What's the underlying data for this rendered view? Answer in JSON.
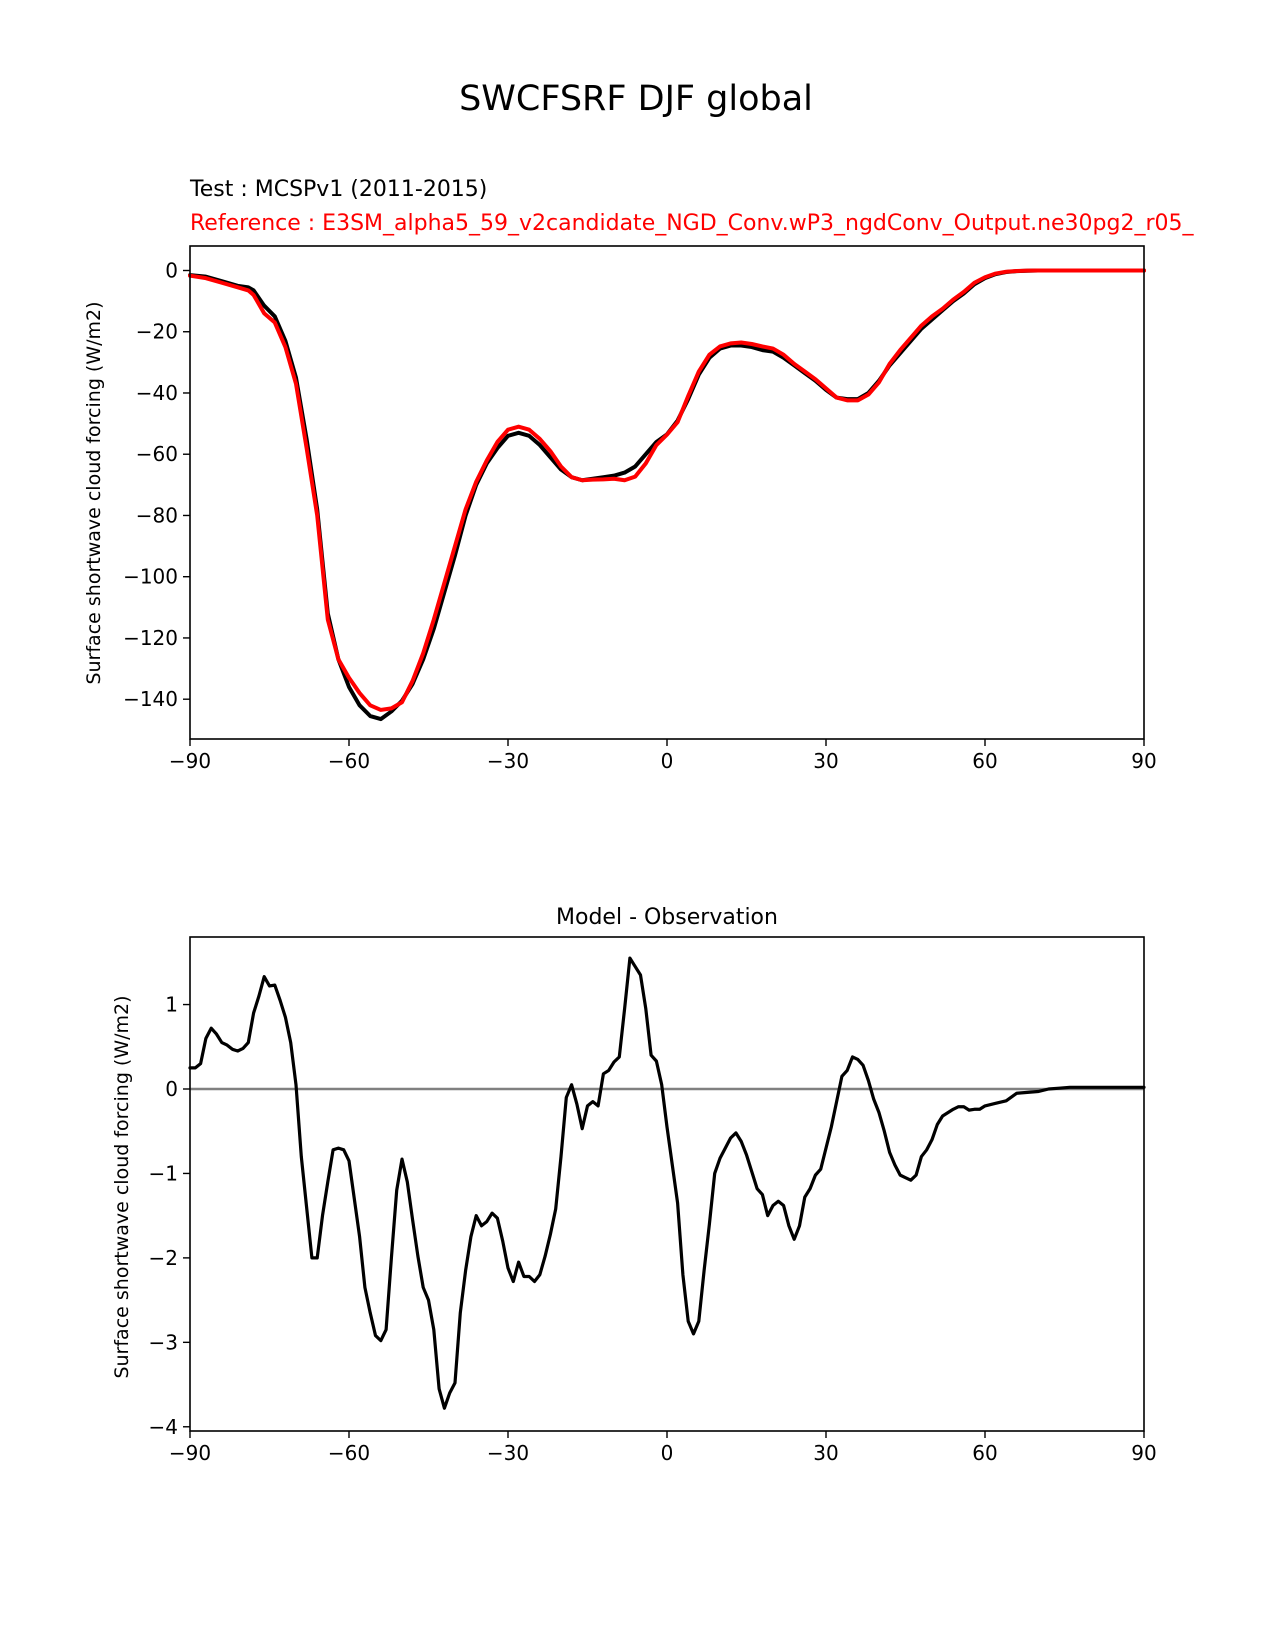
{
  "figure": {
    "title": "SWCFSRF DJF global"
  },
  "colors": {
    "test": "#000000",
    "reference": "#ff0000",
    "zero_line": "#808080",
    "axes": "#000000",
    "background": "#ffffff"
  },
  "chart_data": [
    {
      "type": "line",
      "test_label": "Test : MCSPv1 (2011-2015)",
      "reference_label": "Reference : E3SM_alpha5_59_v2candidate_NGD_Conv.wP3_ngdConv_Output.ne30pg2_r05_",
      "xlabel": "",
      "ylabel": "Surface shortwave cloud forcing (W/m2)",
      "xlim": [
        -90,
        90
      ],
      "ylim": [
        -153,
        8
      ],
      "xticks": [
        -90,
        -60,
        -30,
        0,
        30,
        60,
        90
      ],
      "xtick_labels": [
        "−90",
        "−60",
        "−30",
        "0",
        "30",
        "60",
        "90"
      ],
      "yticks": [
        0,
        -20,
        -40,
        -60,
        -80,
        -100,
        -120,
        -140
      ],
      "ytick_labels": [
        "0",
        "−20",
        "−40",
        "−60",
        "−80",
        "−100",
        "−120",
        "−140"
      ],
      "series": [
        {
          "name": "Test : MCSPv1 (2011-2015)",
          "color": "#000000",
          "x": [
            -90,
            -87,
            -84,
            -81,
            -79,
            -78,
            -76,
            -74,
            -72,
            -70,
            -68,
            -66,
            -64,
            -62,
            -60,
            -58,
            -56,
            -54,
            -52,
            -50,
            -48,
            -46,
            -44,
            -42,
            -40,
            -38,
            -36,
            -34,
            -32,
            -30,
            -28,
            -26,
            -24,
            -22,
            -20,
            -18,
            -16,
            -14,
            -12,
            -10,
            -8,
            -6,
            -4,
            -2,
            0,
            2,
            4,
            6,
            8,
            10,
            12,
            14,
            16,
            18,
            20,
            22,
            24,
            26,
            28,
            30,
            32,
            34,
            36,
            38,
            40,
            42,
            44,
            46,
            48,
            50,
            52,
            54,
            56,
            58,
            60,
            62,
            64,
            66,
            68,
            70,
            75,
            80,
            90
          ],
          "values": [
            -1.5,
            -2,
            -3.5,
            -5,
            -5.5,
            -6.5,
            -11.5,
            -15,
            -23,
            -35,
            -55,
            -78,
            -112,
            -127,
            -136,
            -142,
            -145.5,
            -146.5,
            -144,
            -140.5,
            -135,
            -127,
            -117,
            -105,
            -93,
            -80,
            -70,
            -63,
            -58,
            -54,
            -53,
            -54,
            -57,
            -61,
            -65,
            -67.5,
            -68.5,
            -68,
            -67.5,
            -67,
            -66,
            -64,
            -60,
            -56,
            -53.5,
            -49,
            -42,
            -34,
            -28.5,
            -25.5,
            -24.5,
            -24.5,
            -25,
            -26,
            -26.5,
            -28.5,
            -31,
            -33.5,
            -36,
            -39,
            -41.5,
            -42,
            -42,
            -40,
            -36,
            -31,
            -27,
            -23,
            -19,
            -16,
            -13,
            -10,
            -7.5,
            -4.5,
            -2.5,
            -1.2,
            -0.5,
            -0.2,
            -0.1,
            0,
            0,
            0,
            0
          ]
        },
        {
          "name": "Reference : E3SM_alpha5_59_v2candidate_NGD_Conv.wP3_ngdConv_Output.ne30pg2_r05_",
          "color": "#ff0000",
          "x": [
            -90,
            -87,
            -84,
            -81,
            -79,
            -78,
            -76,
            -74,
            -72,
            -70,
            -68,
            -66,
            -64,
            -62,
            -60,
            -58,
            -56,
            -54,
            -52,
            -50,
            -48,
            -46,
            -44,
            -42,
            -40,
            -38,
            -36,
            -34,
            -32,
            -30,
            -28,
            -26,
            -24,
            -22,
            -20,
            -18,
            -16,
            -14,
            -12,
            -10,
            -8,
            -6,
            -4,
            -2,
            0,
            2,
            4,
            6,
            8,
            10,
            12,
            14,
            16,
            18,
            20,
            22,
            24,
            26,
            28,
            30,
            32,
            34,
            36,
            38,
            40,
            42,
            44,
            46,
            48,
            50,
            52,
            54,
            56,
            58,
            60,
            62,
            64,
            66,
            68,
            70,
            75,
            80,
            90
          ],
          "values": [
            -1.7,
            -2.5,
            -4,
            -5.5,
            -6.5,
            -8,
            -14,
            -17,
            -25,
            -37,
            -58,
            -80,
            -114,
            -127,
            -133,
            -138,
            -142,
            -143.5,
            -143,
            -141,
            -134,
            -125,
            -114,
            -102,
            -90,
            -78,
            -69,
            -62,
            -56,
            -52,
            -51,
            -52,
            -55,
            -59,
            -64,
            -67.5,
            -68.5,
            -68.3,
            -68.2,
            -68,
            -68.5,
            -67.3,
            -63,
            -57,
            -53.6,
            -49.5,
            -41,
            -33,
            -27.5,
            -24.8,
            -23.8,
            -23.5,
            -24,
            -24.8,
            -25.5,
            -27.5,
            -30.5,
            -33,
            -35.5,
            -38.5,
            -41.5,
            -42.4,
            -42.4,
            -40.5,
            -36.5,
            -30.5,
            -26,
            -22,
            -18,
            -15,
            -12.5,
            -9.5,
            -7,
            -4,
            -2.2,
            -1,
            -0.4,
            -0.15,
            -0.05,
            0,
            0,
            0,
            0
          ]
        }
      ]
    },
    {
      "type": "line",
      "title": "Model - Observation",
      "xlabel": "",
      "ylabel": "Surface shortwave cloud forcing (W/m2)",
      "xlim": [
        -90,
        90
      ],
      "ylim": [
        -4.05,
        1.8
      ],
      "xticks": [
        -90,
        -60,
        -30,
        0,
        30,
        60,
        90
      ],
      "xtick_labels": [
        "−90",
        "−60",
        "−30",
        "0",
        "30",
        "60",
        "90"
      ],
      "yticks": [
        1,
        0,
        -1,
        -2,
        -3,
        -4
      ],
      "ytick_labels": [
        "1",
        "0",
        "−1",
        "−2",
        "−3",
        "−4"
      ],
      "zero_line": true,
      "series": [
        {
          "name": "Model - Observation",
          "color": "#000000",
          "x": [
            -90,
            -89,
            -88,
            -87,
            -86,
            -85,
            -84,
            -83,
            -82,
            -81,
            -80,
            -79,
            -78,
            -77,
            -76,
            -75,
            -74,
            -73,
            -72,
            -71,
            -70,
            -69,
            -68,
            -67,
            -66,
            -65,
            -64,
            -63,
            -62,
            -61,
            -60,
            -59,
            -58,
            -57,
            -56,
            -55,
            -54,
            -53,
            -52,
            -51,
            -50,
            -49,
            -48,
            -47,
            -46,
            -45,
            -44,
            -43,
            -42,
            -41,
            -40,
            -39,
            -38,
            -37,
            -36,
            -35,
            -34,
            -33,
            -32,
            -31,
            -30,
            -29,
            -28,
            -27,
            -26,
            -25,
            -24,
            -23,
            -22,
            -21,
            -20,
            -19,
            -18,
            -17,
            -16,
            -15,
            -14,
            -13,
            -12,
            -11,
            -10,
            -9,
            -8,
            -7,
            -6,
            -5,
            -4,
            -3,
            -2,
            -1,
            0,
            1,
            2,
            3,
            4,
            5,
            6,
            7,
            8,
            9,
            10,
            11,
            12,
            13,
            14,
            15,
            16,
            17,
            18,
            19,
            20,
            21,
            22,
            23,
            24,
            25,
            26,
            27,
            28,
            29,
            30,
            31,
            32,
            33,
            34,
            35,
            36,
            37,
            38,
            39,
            40,
            41,
            42,
            43,
            44,
            45,
            46,
            47,
            48,
            49,
            50,
            51,
            52,
            53,
            54,
            55,
            56,
            57,
            58,
            59,
            60,
            62,
            64,
            66,
            68,
            70,
            72,
            74,
            76,
            78,
            80,
            85,
            90
          ],
          "values": [
            0.25,
            0.25,
            0.3,
            0.6,
            0.72,
            0.65,
            0.55,
            0.52,
            0.47,
            0.45,
            0.48,
            0.55,
            0.9,
            1.1,
            1.33,
            1.22,
            1.23,
            1.05,
            0.85,
            0.55,
            0.05,
            -0.8,
            -1.4,
            -2.0,
            -2.0,
            -1.5,
            -1.1,
            -0.72,
            -0.7,
            -0.72,
            -0.85,
            -1.3,
            -1.75,
            -2.35,
            -2.65,
            -2.92,
            -2.98,
            -2.85,
            -2.0,
            -1.2,
            -0.83,
            -1.1,
            -1.55,
            -1.98,
            -2.35,
            -2.5,
            -2.85,
            -3.55,
            -3.78,
            -3.6,
            -3.48,
            -2.65,
            -2.15,
            -1.75,
            -1.5,
            -1.62,
            -1.57,
            -1.47,
            -1.53,
            -1.8,
            -2.12,
            -2.28,
            -2.05,
            -2.22,
            -2.22,
            -2.28,
            -2.2,
            -1.98,
            -1.72,
            -1.42,
            -0.8,
            -0.1,
            0.05,
            -0.18,
            -0.47,
            -0.2,
            -0.15,
            -0.2,
            0.18,
            0.22,
            0.32,
            0.38,
            0.95,
            1.55,
            1.45,
            1.35,
            0.95,
            0.4,
            0.33,
            0.05,
            -0.45,
            -0.9,
            -1.35,
            -2.2,
            -2.75,
            -2.9,
            -2.75,
            -2.15,
            -1.6,
            -1.0,
            -0.82,
            -0.7,
            -0.58,
            -0.52,
            -0.62,
            -0.78,
            -0.98,
            -1.18,
            -1.25,
            -1.5,
            -1.38,
            -1.33,
            -1.38,
            -1.62,
            -1.78,
            -1.62,
            -1.28,
            -1.18,
            -1.02,
            -0.95,
            -0.7,
            -0.45,
            -0.15,
            0.15,
            0.22,
            0.38,
            0.35,
            0.28,
            0.1,
            -0.12,
            -0.28,
            -0.5,
            -0.75,
            -0.9,
            -1.02,
            -1.05,
            -1.08,
            -1.02,
            -0.8,
            -0.72,
            -0.6,
            -0.42,
            -0.32,
            -0.28,
            -0.24,
            -0.21,
            -0.21,
            -0.25,
            -0.24,
            -0.24,
            -0.2,
            -0.17,
            -0.14,
            -0.05,
            -0.04,
            -0.03,
            0.0,
            0.01,
            0.02,
            0.02,
            0.02,
            0.02,
            0.02
          ]
        }
      ]
    }
  ]
}
